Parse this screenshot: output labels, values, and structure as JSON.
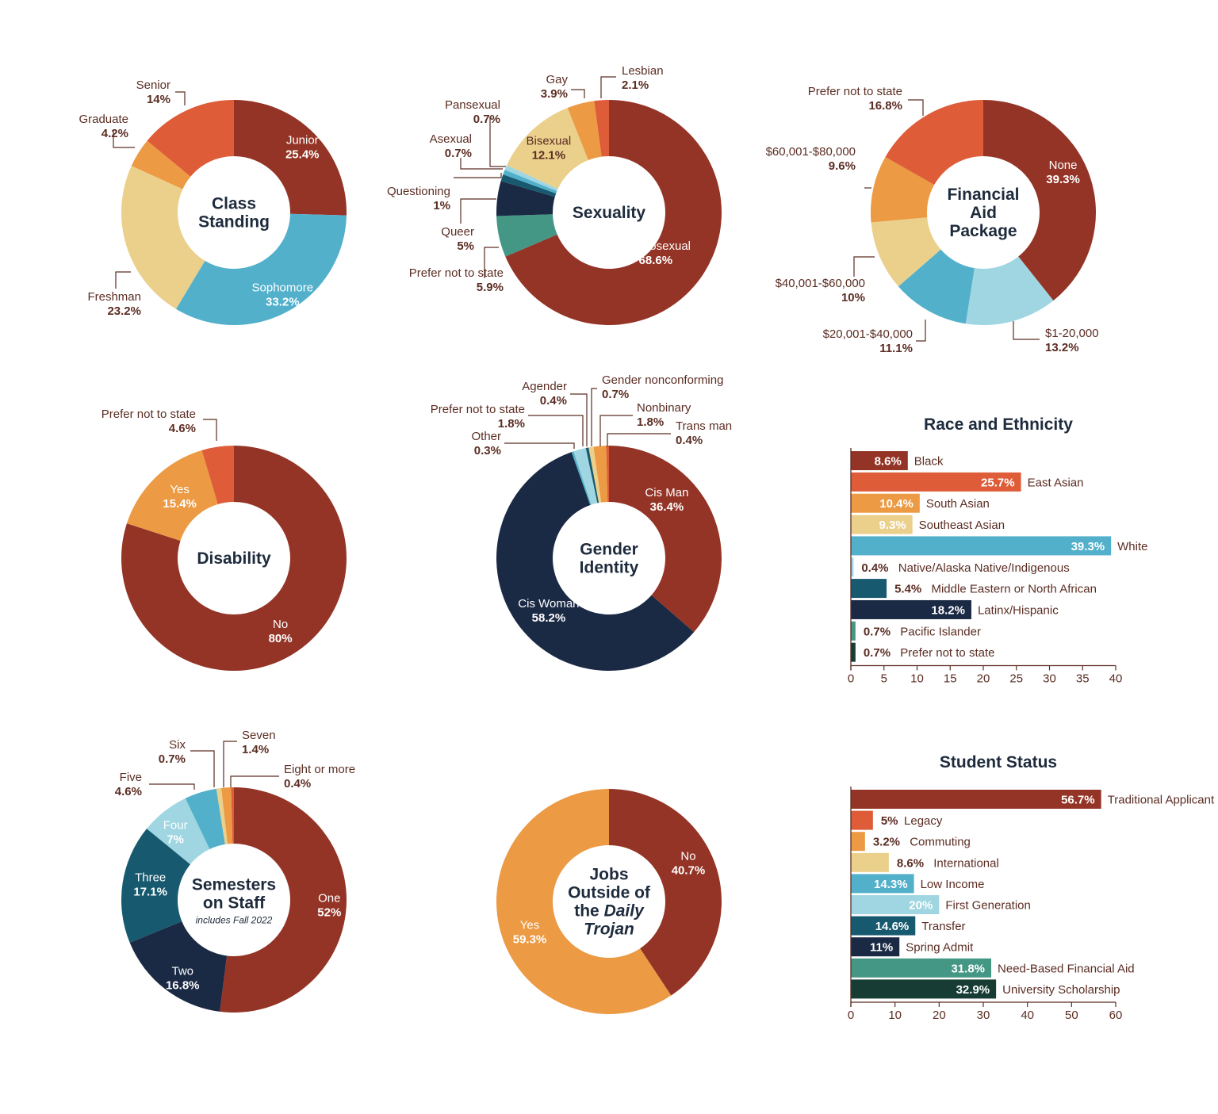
{
  "palette": {
    "dark_red": "#943426",
    "orange_red": "#de5c38",
    "orange": "#ec9a43",
    "light_yellow": "#ebd08c",
    "blue": "#52b0cb",
    "light_blue": "#9fd6e2",
    "teal": "#17596f",
    "navy": "#1b2a44",
    "green": "#449685",
    "dark_green": "#163c33",
    "text_dark": "#1e2b3c",
    "text_label": "#5b2d23"
  },
  "chart_data": [
    {
      "id": "class_standing",
      "type": "pie",
      "title_lines": [
        "Class",
        "Standing"
      ],
      "slices": [
        {
          "label": "Junior",
          "value": 25.4,
          "value_text": "25.4%",
          "color": "dark_red"
        },
        {
          "label": "Sophomore",
          "value": 33.2,
          "value_text": "33.2%",
          "color": "blue"
        },
        {
          "label": "Freshman",
          "value": 23.2,
          "value_text": "23.2%",
          "color": "light_yellow"
        },
        {
          "label": "Graduate",
          "value": 4.2,
          "value_text": "4.2%",
          "color": "orange"
        },
        {
          "label": "Senior",
          "value": 14,
          "value_text": "14%",
          "color": "orange_red"
        }
      ]
    },
    {
      "id": "sexuality",
      "type": "pie",
      "title_lines": [
        "Sexuality"
      ],
      "slices": [
        {
          "label": "Heterosexual",
          "value": 68.6,
          "value_text": "68.6%",
          "color": "dark_red"
        },
        {
          "label": "Prefer not to state",
          "value": 5.9,
          "value_text": "5.9%",
          "color": "green"
        },
        {
          "label": "Queer",
          "value": 5,
          "value_text": "5%",
          "color": "navy"
        },
        {
          "label": "Questioning",
          "value": 1,
          "value_text": "1%",
          "color": "teal"
        },
        {
          "label": "Asexual",
          "value": 0.7,
          "value_text": "0.7%",
          "color": "blue"
        },
        {
          "label": "Pansexual",
          "value": 0.7,
          "value_text": "0.7%",
          "color": "light_blue"
        },
        {
          "label": "Bisexual",
          "value": 12.1,
          "value_text": "12.1%",
          "color": "light_yellow"
        },
        {
          "label": "Gay",
          "value": 3.9,
          "value_text": "3.9%",
          "color": "orange"
        },
        {
          "label": "Lesbian",
          "value": 2.1,
          "value_text": "2.1%",
          "color": "orange_red"
        }
      ]
    },
    {
      "id": "financial_aid",
      "type": "pie",
      "title_lines": [
        "Financial",
        "Aid",
        "Package"
      ],
      "slices": [
        {
          "label": "None",
          "value": 39.3,
          "value_text": "39.3%",
          "color": "dark_red"
        },
        {
          "label": "$1-20,000",
          "value": 13.2,
          "value_text": "13.2%",
          "color": "light_blue"
        },
        {
          "label": "$20,001-$40,000",
          "value": 11.1,
          "value_text": "11.1%",
          "color": "blue"
        },
        {
          "label": "$40,001-$60,000",
          "value": 10,
          "value_text": "10%",
          "color": "light_yellow"
        },
        {
          "label": "$60,001-$80,000",
          "value": 9.6,
          "value_text": "9.6%",
          "color": "orange"
        },
        {
          "label": "Prefer not to state",
          "value": 16.8,
          "value_text": "16.8%",
          "color": "orange_red"
        }
      ]
    },
    {
      "id": "disability",
      "type": "pie",
      "title_lines": [
        "Disability"
      ],
      "slices": [
        {
          "label": "No",
          "value": 80,
          "value_text": "80%",
          "color": "dark_red"
        },
        {
          "label": "Yes",
          "value": 15.4,
          "value_text": "15.4%",
          "color": "orange"
        },
        {
          "label": "Prefer not to state",
          "value": 4.6,
          "value_text": "4.6%",
          "color": "orange_red"
        }
      ]
    },
    {
      "id": "gender_identity",
      "type": "pie",
      "title_lines": [
        "Gender",
        "Identity"
      ],
      "slices": [
        {
          "label": "Cis Man",
          "value": 36.4,
          "value_text": "36.4%",
          "color": "dark_red"
        },
        {
          "label": "Cis Woman",
          "value": 58.2,
          "value_text": "58.2%",
          "color": "navy"
        },
        {
          "label": "Other",
          "value": 0.3,
          "value_text": "0.3%",
          "color": "blue"
        },
        {
          "label": "Prefer not to state",
          "value": 1.8,
          "value_text": "1.8%",
          "color": "light_blue"
        },
        {
          "label": "Agender",
          "value": 0.4,
          "value_text": "0.4%",
          "color": "teal"
        },
        {
          "label": "Gender nonconforming",
          "value": 0.7,
          "value_text": "0.7%",
          "color": "light_yellow"
        },
        {
          "label": "Nonbinary",
          "value": 1.8,
          "value_text": "1.8%",
          "color": "orange"
        },
        {
          "label": "Trans man",
          "value": 0.4,
          "value_text": "0.4%",
          "color": "orange_red"
        }
      ]
    },
    {
      "id": "semesters",
      "type": "pie",
      "title_lines": [
        "Semesters",
        "on Staff"
      ],
      "subtitle": "includes Fall 2022",
      "slices": [
        {
          "label": "One",
          "value": 52,
          "value_text": "52%",
          "color": "dark_red"
        },
        {
          "label": "Two",
          "value": 16.8,
          "value_text": "16.8%",
          "color": "navy"
        },
        {
          "label": "Three",
          "value": 17.1,
          "value_text": "17.1%",
          "color": "teal"
        },
        {
          "label": "Four",
          "value": 7,
          "value_text": "7%",
          "color": "light_blue"
        },
        {
          "label": "Five",
          "value": 4.6,
          "value_text": "4.6%",
          "color": "blue"
        },
        {
          "label": "Six",
          "value": 0.7,
          "value_text": "0.7%",
          "color": "light_yellow"
        },
        {
          "label": "Seven",
          "value": 1.4,
          "value_text": "1.4%",
          "color": "orange"
        },
        {
          "label": "Eight or more",
          "value": 0.4,
          "value_text": "0.4%",
          "color": "orange_red"
        }
      ]
    },
    {
      "id": "jobs",
      "type": "pie",
      "title_lines": [
        "Jobs",
        "Outside of",
        "the Daily",
        "Trojan"
      ],
      "slices": [
        {
          "label": "No",
          "value": 40.7,
          "value_text": "40.7%",
          "color": "dark_red"
        },
        {
          "label": "Yes",
          "value": 59.3,
          "value_text": "59.3%",
          "color": "orange"
        }
      ]
    },
    {
      "id": "race",
      "type": "bar",
      "orientation": "horizontal",
      "title": "Race and Ethnicity",
      "xlim": [
        0,
        40
      ],
      "ticks": [
        "0",
        "5",
        "10",
        "15",
        "20",
        "25",
        "30",
        "35",
        "40"
      ],
      "bars": [
        {
          "label": "Black",
          "value": 8.6,
          "value_text": "8.6%",
          "color": "dark_red"
        },
        {
          "label": "East Asian",
          "value": 25.7,
          "value_text": "25.7%",
          "color": "orange_red"
        },
        {
          "label": "South Asian",
          "value": 10.4,
          "value_text": "10.4%",
          "color": "orange"
        },
        {
          "label": "Southeast Asian",
          "value": 9.3,
          "value_text": "9.3%",
          "color": "light_yellow"
        },
        {
          "label": "White",
          "value": 39.3,
          "value_text": "39.3%",
          "color": "blue"
        },
        {
          "label": "Native/Alaska Native/Indigenous",
          "value": 0.4,
          "value_text": "0.4%",
          "color": "light_blue"
        },
        {
          "label": "Middle Eastern or North African",
          "value": 5.4,
          "value_text": "5.4%",
          "color": "teal"
        },
        {
          "label": "Latinx/Hispanic",
          "value": 18.2,
          "value_text": "18.2%",
          "color": "navy"
        },
        {
          "label": "Pacific Islander",
          "value": 0.7,
          "value_text": "0.7%",
          "color": "green"
        },
        {
          "label": "Prefer not to state",
          "value": 0.7,
          "value_text": "0.7%",
          "color": "dark_green"
        }
      ]
    },
    {
      "id": "student_status",
      "type": "bar",
      "orientation": "horizontal",
      "title": "Student Status",
      "xlim": [
        0,
        60
      ],
      "ticks": [
        "0",
        "10",
        "20",
        "30",
        "40",
        "50",
        "60"
      ],
      "bars": [
        {
          "label": "Traditional Applicant",
          "value": 56.7,
          "value_text": "56.7%",
          "color": "dark_red"
        },
        {
          "label": "Legacy",
          "value": 5,
          "value_text": "5%",
          "color": "orange_red"
        },
        {
          "label": "Commuting",
          "value": 3.2,
          "value_text": "3.2%",
          "color": "orange"
        },
        {
          "label": "International",
          "value": 8.6,
          "value_text": "8.6%",
          "color": "light_yellow"
        },
        {
          "label": "Low Income",
          "value": 14.3,
          "value_text": "14.3%",
          "color": "blue"
        },
        {
          "label": "First Generation",
          "value": 20,
          "value_text": "20%",
          "color": "light_blue"
        },
        {
          "label": "Transfer",
          "value": 14.6,
          "value_text": "14.6%",
          "color": "teal"
        },
        {
          "label": "Spring Admit",
          "value": 11,
          "value_text": "11%",
          "color": "navy"
        },
        {
          "label": "Need-Based Financial Aid",
          "value": 31.8,
          "value_text": "31.8%",
          "color": "green"
        },
        {
          "label": "University Scholarship",
          "value": 32.9,
          "value_text": "32.9%",
          "color": "dark_green"
        }
      ]
    }
  ]
}
